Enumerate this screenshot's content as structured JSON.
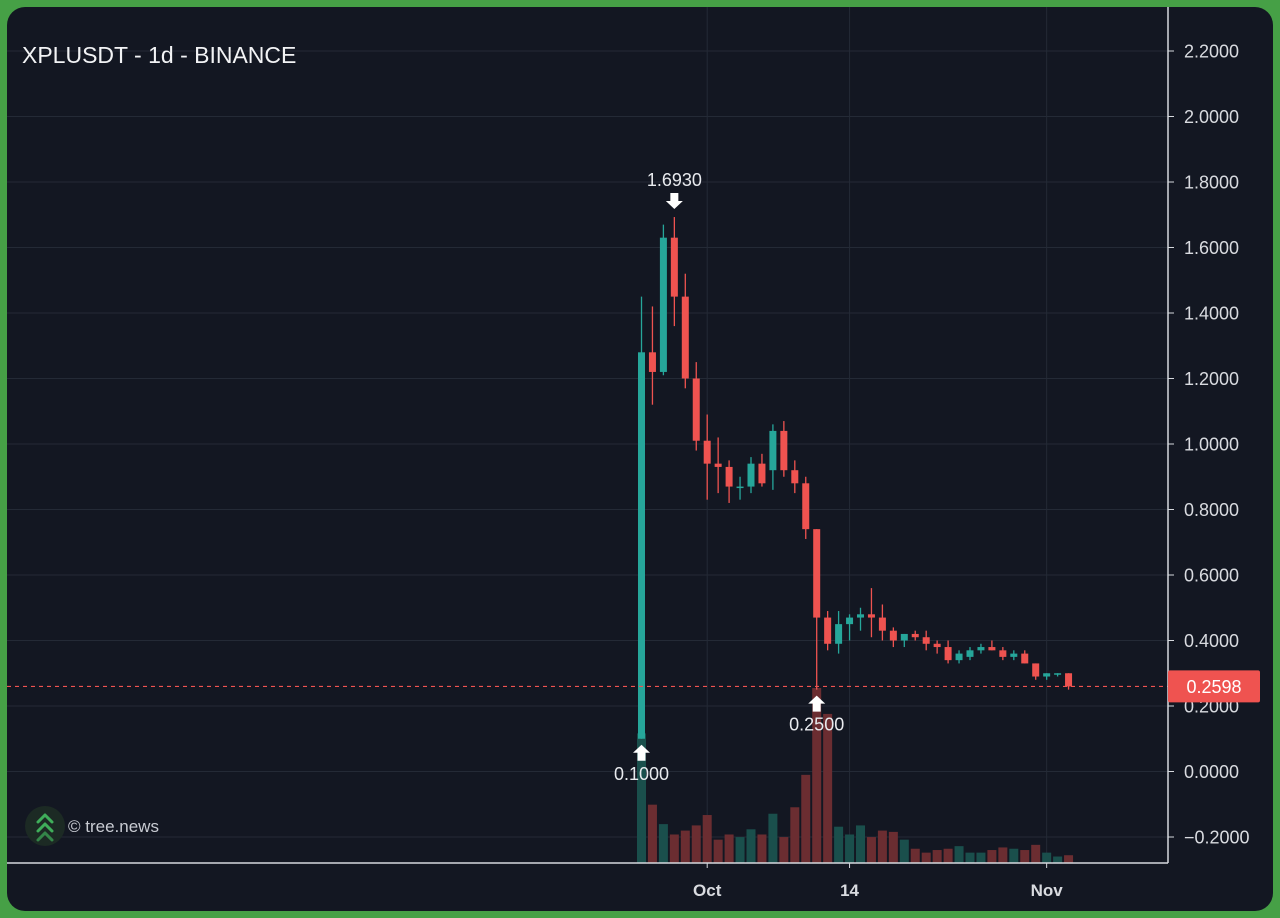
{
  "title": "XPLUSDT - 1d - BINANCE",
  "watermark": "© tree.news",
  "icons": {
    "logo": "double-chevron-up-logo-icon",
    "arrow_down": "arrow-down-icon",
    "arrow_up": "arrow-up-icon"
  },
  "colors": {
    "background": "#131722",
    "up": "#26a69a",
    "down": "#ef5350",
    "volume_up": "#1a4f4c",
    "volume_down": "#6b2d31",
    "price_line": "#ef5350",
    "frame": "#46a046"
  },
  "chart_data": {
    "type": "candlestick",
    "ylim": [
      -0.28,
      2.32
    ],
    "y_ticks": [
      "2.2000",
      "2.0000",
      "1.8000",
      "1.6000",
      "1.4000",
      "1.2000",
      "1.0000",
      "0.8000",
      "0.6000",
      "0.4000",
      "0.2000",
      "0.0000",
      "−0.2000"
    ],
    "x_labels": [
      "Oct",
      "14",
      "Nov"
    ],
    "last_price": "0.2598",
    "annotations": {
      "high": "1.6930",
      "low_start": "0.1000",
      "low_dip": "0.2500"
    },
    "candles": [
      {
        "date": "2025-09-25",
        "open": 0.1,
        "high": 1.45,
        "low": 0.1,
        "close": 1.28,
        "volume": 100
      },
      {
        "date": "2025-09-26",
        "open": 1.28,
        "high": 1.42,
        "low": 1.12,
        "close": 1.22,
        "volume": 45
      },
      {
        "date": "2025-09-27",
        "open": 1.22,
        "high": 1.67,
        "low": 1.21,
        "close": 1.63,
        "volume": 30
      },
      {
        "date": "2025-09-28",
        "open": 1.63,
        "high": 1.693,
        "low": 1.36,
        "close": 1.45,
        "volume": 22
      },
      {
        "date": "2025-09-29",
        "open": 1.45,
        "high": 1.52,
        "low": 1.17,
        "close": 1.2,
        "volume": 25
      },
      {
        "date": "2025-09-30",
        "open": 1.2,
        "high": 1.25,
        "low": 0.98,
        "close": 1.01,
        "volume": 29
      },
      {
        "date": "2025-10-01",
        "open": 1.01,
        "high": 1.09,
        "low": 0.83,
        "close": 0.94,
        "volume": 37
      },
      {
        "date": "2025-10-02",
        "open": 0.94,
        "high": 1.02,
        "low": 0.85,
        "close": 0.93,
        "volume": 18
      },
      {
        "date": "2025-10-03",
        "open": 0.93,
        "high": 0.95,
        "low": 0.82,
        "close": 0.87,
        "volume": 22
      },
      {
        "date": "2025-10-04",
        "open": 0.87,
        "high": 0.9,
        "low": 0.83,
        "close": 0.87,
        "volume": 20
      },
      {
        "date": "2025-10-05",
        "open": 0.87,
        "high": 0.96,
        "low": 0.85,
        "close": 0.94,
        "volume": 26
      },
      {
        "date": "2025-10-06",
        "open": 0.94,
        "high": 0.97,
        "low": 0.87,
        "close": 0.88,
        "volume": 22
      },
      {
        "date": "2025-10-07",
        "open": 0.92,
        "high": 1.06,
        "low": 0.86,
        "close": 1.04,
        "volume": 38
      },
      {
        "date": "2025-10-08",
        "open": 1.04,
        "high": 1.07,
        "low": 0.9,
        "close": 0.92,
        "volume": 20
      },
      {
        "date": "2025-10-09",
        "open": 0.92,
        "high": 0.95,
        "low": 0.85,
        "close": 0.88,
        "volume": 43
      },
      {
        "date": "2025-10-10",
        "open": 0.88,
        "high": 0.9,
        "low": 0.71,
        "close": 0.74,
        "volume": 68
      },
      {
        "date": "2025-10-11",
        "open": 0.74,
        "high": 0.74,
        "low": 0.25,
        "close": 0.47,
        "volume": 135
      },
      {
        "date": "2025-10-12",
        "open": 0.47,
        "high": 0.49,
        "low": 0.37,
        "close": 0.39,
        "volume": 115
      },
      {
        "date": "2025-10-13",
        "open": 0.39,
        "high": 0.49,
        "low": 0.36,
        "close": 0.45,
        "volume": 28
      },
      {
        "date": "2025-10-14",
        "open": 0.45,
        "high": 0.48,
        "low": 0.4,
        "close": 0.47,
        "volume": 22
      },
      {
        "date": "2025-10-15",
        "open": 0.47,
        "high": 0.5,
        "low": 0.43,
        "close": 0.48,
        "volume": 29
      },
      {
        "date": "2025-10-16",
        "open": 0.48,
        "high": 0.56,
        "low": 0.41,
        "close": 0.47,
        "volume": 20
      },
      {
        "date": "2025-10-17",
        "open": 0.47,
        "high": 0.51,
        "low": 0.4,
        "close": 0.43,
        "volume": 25
      },
      {
        "date": "2025-10-18",
        "open": 0.43,
        "high": 0.44,
        "low": 0.38,
        "close": 0.4,
        "volume": 24
      },
      {
        "date": "2025-10-19",
        "open": 0.4,
        "high": 0.42,
        "low": 0.38,
        "close": 0.42,
        "volume": 18
      },
      {
        "date": "2025-10-20",
        "open": 0.42,
        "high": 0.43,
        "low": 0.4,
        "close": 0.41,
        "volume": 11
      },
      {
        "date": "2025-10-21",
        "open": 0.41,
        "high": 0.43,
        "low": 0.37,
        "close": 0.39,
        "volume": 8
      },
      {
        "date": "2025-10-22",
        "open": 0.39,
        "high": 0.4,
        "low": 0.36,
        "close": 0.38,
        "volume": 10
      },
      {
        "date": "2025-10-23",
        "open": 0.38,
        "high": 0.4,
        "low": 0.33,
        "close": 0.34,
        "volume": 11
      },
      {
        "date": "2025-10-24",
        "open": 0.34,
        "high": 0.37,
        "low": 0.33,
        "close": 0.36,
        "volume": 13
      },
      {
        "date": "2025-10-25",
        "open": 0.35,
        "high": 0.38,
        "low": 0.34,
        "close": 0.37,
        "volume": 8
      },
      {
        "date": "2025-10-26",
        "open": 0.37,
        "high": 0.39,
        "low": 0.36,
        "close": 0.38,
        "volume": 8
      },
      {
        "date": "2025-10-27",
        "open": 0.38,
        "high": 0.4,
        "low": 0.37,
        "close": 0.37,
        "volume": 10
      },
      {
        "date": "2025-10-28",
        "open": 0.37,
        "high": 0.38,
        "low": 0.34,
        "close": 0.35,
        "volume": 12
      },
      {
        "date": "2025-10-29",
        "open": 0.35,
        "high": 0.37,
        "low": 0.34,
        "close": 0.36,
        "volume": 11
      },
      {
        "date": "2025-10-30",
        "open": 0.36,
        "high": 0.37,
        "low": 0.33,
        "close": 0.33,
        "volume": 10
      },
      {
        "date": "2025-10-31",
        "open": 0.33,
        "high": 0.33,
        "low": 0.28,
        "close": 0.29,
        "volume": 14
      },
      {
        "date": "2025-11-01",
        "open": 0.29,
        "high": 0.3,
        "low": 0.28,
        "close": 0.3,
        "volume": 8
      },
      {
        "date": "2025-11-02",
        "open": 0.3,
        "high": 0.3,
        "low": 0.29,
        "close": 0.3,
        "volume": 5
      },
      {
        "date": "2025-11-03",
        "open": 0.3,
        "high": 0.3,
        "low": 0.25,
        "close": 0.2598,
        "volume": 6
      }
    ]
  }
}
